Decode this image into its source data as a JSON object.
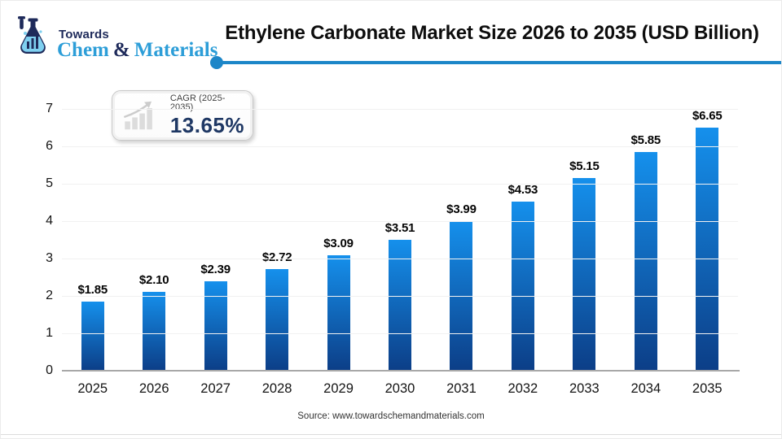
{
  "header": {
    "logo": {
      "line1": "Towards",
      "brand_chem": "Chem",
      "brand_amp": " & ",
      "brand_materials": "Materials",
      "navy": "#1e2a5a",
      "blue": "#2d9ed8"
    },
    "title": "Ethylene Carbonate Market Size 2026 to 2035 (USD Billion)",
    "accent_color": "#1c86c8"
  },
  "cagr_badge": {
    "label": "CAGR (2025-2035)",
    "value": "13.65%",
    "value_color": "#1f3864",
    "icon": "growth-bars-arrow-icon"
  },
  "chart_data": {
    "type": "bar",
    "title": "Ethylene Carbonate Market Size 2026 to 2035 (USD Billion)",
    "categories": [
      "2025",
      "2026",
      "2027",
      "2028",
      "2029",
      "2030",
      "2031",
      "2032",
      "2033",
      "2034",
      "2035"
    ],
    "values": [
      1.85,
      2.1,
      2.39,
      2.72,
      3.09,
      3.51,
      3.99,
      4.53,
      5.15,
      5.85,
      6.65
    ],
    "value_labels": [
      "$1.85",
      "$2.10",
      "$2.39",
      "$2.72",
      "$3.09",
      "$3.51",
      "$3.99",
      "$4.53",
      "$5.15",
      "$5.85",
      "$6.65"
    ],
    "xlabel": "",
    "ylabel": "",
    "ylim": [
      0,
      7
    ],
    "yticks": [
      0,
      1,
      2,
      3,
      4,
      5,
      6,
      7
    ],
    "grid": true,
    "legend": false,
    "bar_color_top": "#1590ec",
    "bar_color_bottom": "#0c3e87"
  },
  "footer": {
    "source": "Source: www.towardschemandmaterials.com"
  }
}
